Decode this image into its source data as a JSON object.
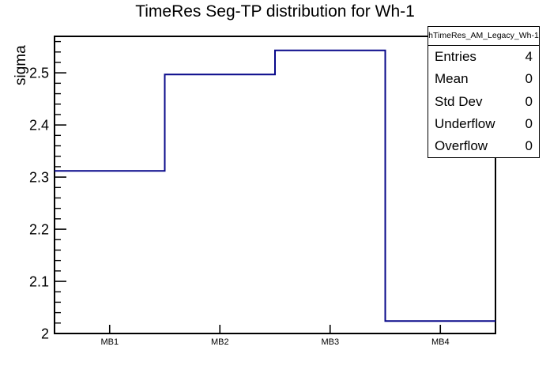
{
  "chart_data": {
    "type": "bar",
    "render_style": "root-step-histogram-outline",
    "title": "TimeRes Seg-TP distribution for Wh-1",
    "xlabel": "",
    "ylabel": "sigma",
    "categories": [
      "MB1",
      "MB2",
      "MB3",
      "MB4"
    ],
    "values": [
      2.312,
      2.497,
      2.543,
      2.024
    ],
    "ylim": [
      2,
      2.57
    ],
    "yticks": [
      2,
      2.1,
      2.2,
      2.3,
      2.4,
      2.5
    ],
    "ytick_labels": [
      "2",
      "2.1",
      "2.2",
      "2.3",
      "2.4",
      "2.5"
    ],
    "yminor_step": 0.02,
    "grid": false,
    "legend_position": "none",
    "line_color": "#08088a",
    "frame_color": "#000000"
  },
  "stats_box": {
    "title": "hTimeRes_AM_Legacy_Wh-1",
    "rows": [
      {
        "label": "Entries",
        "value": "4"
      },
      {
        "label": "Mean",
        "value": "0"
      },
      {
        "label": "Std Dev",
        "value": "0"
      },
      {
        "label": "Underflow",
        "value": "0"
      },
      {
        "label": "Overflow",
        "value": "0"
      }
    ]
  }
}
